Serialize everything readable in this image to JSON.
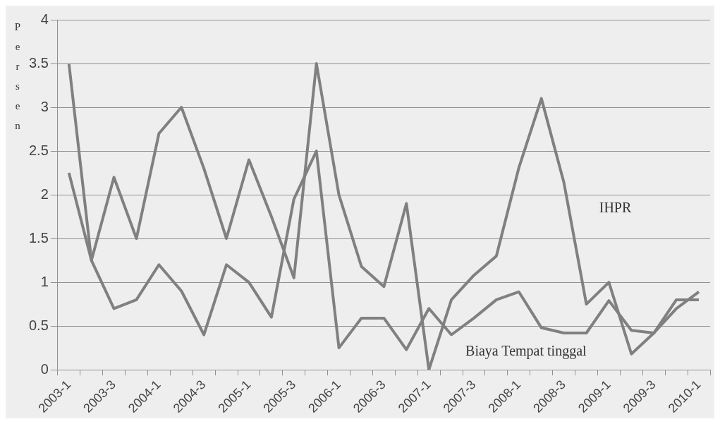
{
  "chart_data": {
    "type": "line",
    "ylabel": "Persen",
    "categories": [
      "2003-1",
      null,
      "2003-3",
      null,
      "2004-1",
      null,
      "2004-3",
      null,
      "2005-1",
      null,
      "2005-3",
      null,
      "2006-1",
      null,
      "2006-3",
      null,
      "2007-1",
      null,
      "2007-3",
      null,
      "2008-1",
      null,
      "2008-3",
      null,
      "2009-1",
      null,
      "2009-3",
      null,
      "2010-1"
    ],
    "series": [
      {
        "name": "IHPR",
        "color": "#808080",
        "values": [
          2.25,
          1.25,
          2.2,
          1.5,
          2.7,
          3.0,
          2.3,
          1.5,
          2.4,
          1.75,
          1.05,
          3.5,
          2.0,
          1.18,
          0.95,
          1.9,
          0.0,
          0.8,
          1.08,
          1.3,
          2.31,
          3.1,
          2.14,
          0.75,
          1.0,
          0.18,
          0.42,
          0.7,
          0.89
        ]
      },
      {
        "name": "Biaya Tempat tinggal",
        "color": "#808080",
        "values": [
          3.5,
          1.25,
          0.7,
          0.8,
          1.2,
          0.9,
          0.4,
          1.2,
          1.0,
          0.6,
          1.95,
          2.5,
          0.25,
          0.59,
          0.59,
          0.23,
          0.7,
          0.4,
          0.59,
          0.8,
          0.89,
          0.48,
          0.42,
          0.42,
          0.79,
          0.45,
          0.42,
          0.8,
          0.8
        ]
      }
    ],
    "ylim": [
      0,
      4
    ],
    "yticks": [
      0,
      0.5,
      1,
      1.5,
      2,
      2.5,
      3,
      3.5,
      4
    ],
    "grid": "y",
    "marker": "none",
    "line_style": "solid"
  }
}
